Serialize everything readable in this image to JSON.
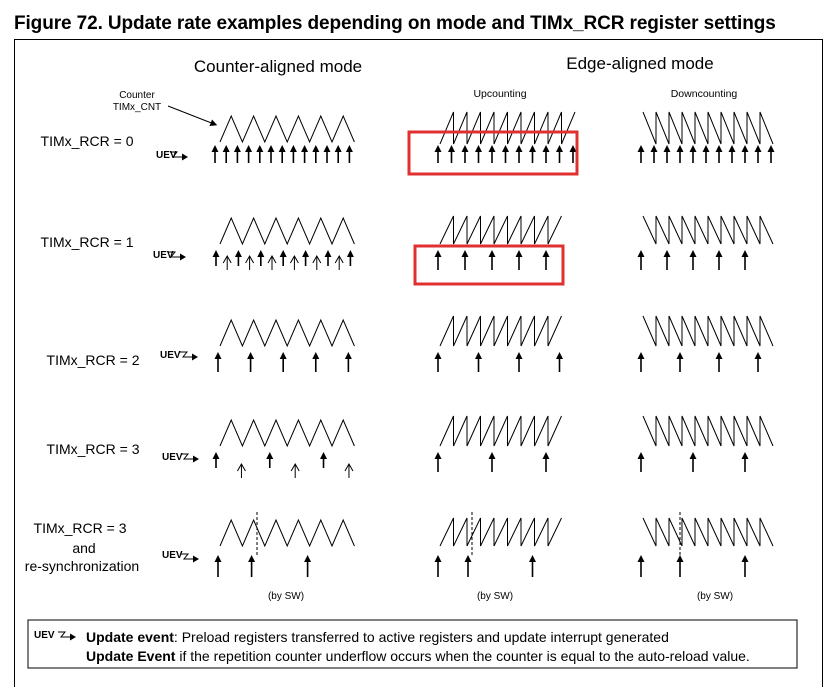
{
  "figure": {
    "title": "Figure 72. Update rate examples depending on mode and TIMx_RCR register settings"
  },
  "headers": {
    "counter_aligned": "Counter-aligned mode",
    "edge_aligned": "Edge-aligned mode",
    "upcounting": "Upcounting",
    "downcounting": "Downcounting",
    "counter_label_line1": "Counter",
    "counter_label_line2": "TIMx_CNT"
  },
  "rows": [
    {
      "label": "TIMx_RCR = 0"
    },
    {
      "label": "TIMx_RCR = 1"
    },
    {
      "label": "TIMx_RCR = 2"
    },
    {
      "label": "TIMx_RCR = 3"
    },
    {
      "label_lines": [
        "TIMx_RCR = 3",
        "and",
        "re-synchronization"
      ]
    }
  ],
  "uev_label": "UEV",
  "by_sw": "(by SW)",
  "legend": {
    "uev": "UEV",
    "line1_bold": "Update event",
    "line1_rest": ": Preload registers transferred to active registers and update interrupt generated",
    "line2_bold": "Update Event",
    "line2_rest": " if the repetition counter underflow occurs when the counter is equal to the auto-reload value."
  },
  "colors": {
    "highlight": "#e03030",
    "line": "#000000"
  }
}
